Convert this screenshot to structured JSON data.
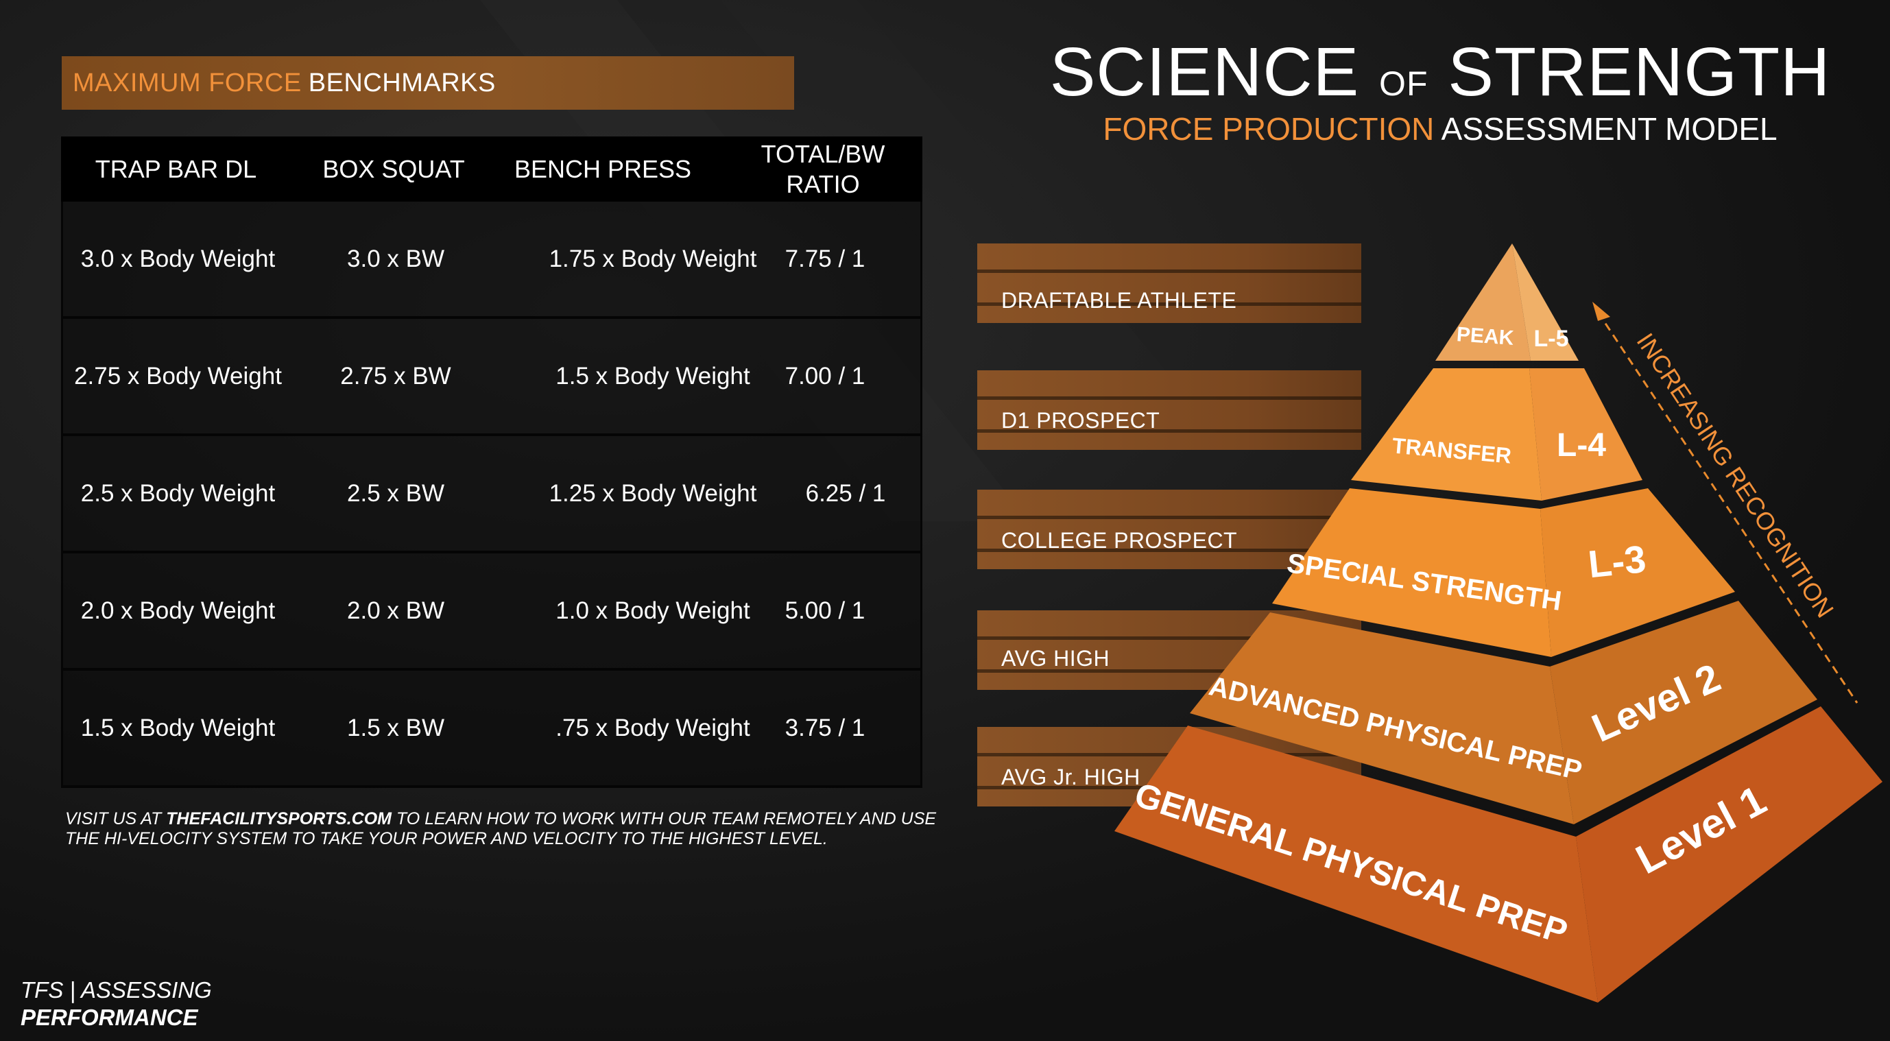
{
  "banner": {
    "accent": "MAXIMUM FORCE",
    "plain": "BENCHMARKS"
  },
  "table": {
    "headers": [
      "TRAP BAR DL",
      "BOX SQUAT",
      "BENCH PRESS",
      "TOTAL/BW RATIO"
    ],
    "rows": [
      [
        "3.0 x Body Weight",
        "3.0 x BW",
        "1.75 x Body Weight",
        "7.75 / 1"
      ],
      [
        "2.75 x Body Weight",
        "2.75 x BW",
        "1.5 x Body Weight",
        "7.00 / 1"
      ],
      [
        "2.5 x Body Weight",
        "2.5 x BW",
        "1.25 x Body Weight",
        "6.25 / 1"
      ],
      [
        "2.0 x Body Weight",
        "2.0 x BW",
        "1.0 x Body Weight",
        "5.00 / 1"
      ],
      [
        "1.5 x Body Weight",
        "1.5 x BW",
        ".75 x Body Weight",
        "3.75 / 1"
      ]
    ]
  },
  "footnote": {
    "pre": "VISIT US AT ",
    "site": "THEFACILITYSPORTS.COM",
    "post": " TO LEARN HOW TO WORK WITH OUR TEAM REMOTELY AND USE THE HI-VELOCITY SYSTEM TO TAKE YOUR POWER AND VELOCITY TO THE HIGHEST LEVEL."
  },
  "brand": {
    "line1": "TFS | ASSESSING",
    "line2": "PERFORMANCE"
  },
  "title": {
    "part1": "SCIENCE",
    "of": "OF",
    "part2": "STRENGTH"
  },
  "subtitle": {
    "accent": "FORCE PRODUCTION",
    "plain": "ASSESSMENT MODEL"
  },
  "levels": [
    "DRAFTABLE ATHLETE",
    "D1 PROSPECT",
    "COLLEGE PROSPECT",
    "AVG HIGH",
    "AVG Jr. HIGH"
  ],
  "pyramid": {
    "tiers": [
      {
        "name": "PEAK",
        "level": "L-5"
      },
      {
        "name": "TRANSFER",
        "level": "L-4"
      },
      {
        "name": "SPECIAL STRENGTH",
        "level": "L-3"
      },
      {
        "name": "ADVANCED PHYSICAL PREP",
        "level": "Level 2"
      },
      {
        "name": "GENERAL PHYSICAL PREP",
        "level": "Level 1"
      }
    ],
    "arrow_label": "INCREASING RECOGNITION"
  },
  "colors": {
    "accent": "#f2913a",
    "banner": "#8a5524",
    "background": "#161616"
  }
}
